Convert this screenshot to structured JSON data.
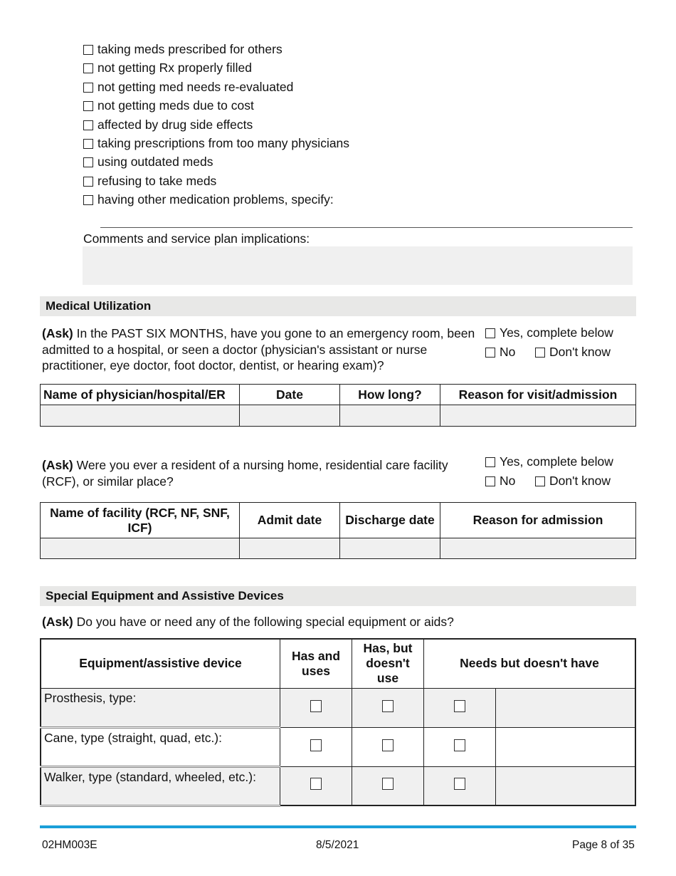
{
  "medication_problems": [
    "taking meds prescribed for others",
    "not getting Rx properly filled",
    "not getting med needs re-evaluated",
    "not getting meds due to cost",
    "affected by drug side effects",
    "taking prescriptions from too many physicians",
    "using outdated meds",
    "refusing to take meds",
    "having other medication problems, specify:"
  ],
  "comments_label": "Comments and service plan implications:",
  "medical_utilization": {
    "title": "Medical Utilization",
    "q1": {
      "ask": "(Ask)",
      "text": " In the PAST SIX MONTHS, have you gone to an emergency room, been admitted to a hospital, or seen a doctor (physician's assistant or nurse practitioner, eye doctor, foot doctor, dentist, or hearing exam)?"
    },
    "q2": {
      "ask": "(Ask)",
      "text": " Were you ever a resident of a nursing home, residential care facility (RCF), or similar place?"
    },
    "options": {
      "yes": "Yes, complete below",
      "no": "No",
      "dont_know": "Don't know"
    },
    "table1_headers": [
      "Name of physician/hospital/ER",
      "Date",
      "How long?",
      "Reason for visit/admission"
    ],
    "table2_headers": [
      "Name of facility (RCF, NF, SNF, ICF)",
      "Admit date",
      "Discharge date",
      "Reason for admission"
    ]
  },
  "special_equipment": {
    "title": "Special Equipment and Assistive Devices",
    "ask": "(Ask)",
    "text": " Do you have or need any of the following special equipment or aids?",
    "headers": [
      "Equipment/assistive device",
      "Has and uses",
      "Has, but doesn't use",
      "Needs but doesn't have"
    ],
    "rows": [
      "Prosthesis, type:",
      "Cane, type (straight, quad, etc.):",
      "Walker, type (standard, wheeled, etc.):"
    ]
  },
  "footer": {
    "form_id": "02HM003E",
    "date": "8/5/2021",
    "page": "Page 8 of 35",
    "accent": "#1a9fd9"
  }
}
